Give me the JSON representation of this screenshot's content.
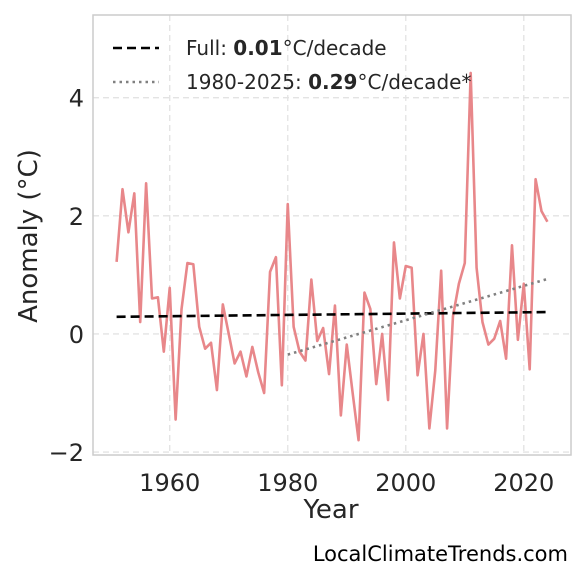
{
  "chart_data": {
    "type": "line",
    "title": "",
    "xlabel": "Year",
    "ylabel": "Anomaly (°C)",
    "xlim": [
      1947,
      2028
    ],
    "ylim": [
      -2.05,
      5.4
    ],
    "xticks": [
      1960,
      1980,
      2000,
      2020
    ],
    "xtick_labels": [
      "1960",
      "1980",
      "2000",
      "2020"
    ],
    "yticks": [
      -2,
      0,
      2,
      4
    ],
    "ytick_labels": [
      "−2",
      "0",
      "2",
      "4"
    ],
    "grid": true,
    "legend_position": "top-left",
    "series": [
      {
        "kind": "data",
        "color": "#e8878a",
        "x": [
          1951,
          1952,
          1953,
          1954,
          1955,
          1956,
          1957,
          1958,
          1959,
          1960,
          1961,
          1962,
          1963,
          1964,
          1965,
          1966,
          1967,
          1968,
          1969,
          1970,
          1971,
          1972,
          1973,
          1974,
          1975,
          1976,
          1977,
          1978,
          1979,
          1980,
          1981,
          1982,
          1983,
          1984,
          1985,
          1986,
          1987,
          1988,
          1989,
          1990,
          1991,
          1992,
          1993,
          1994,
          1995,
          1996,
          1997,
          1998,
          1999,
          2000,
          2001,
          2002,
          2003,
          2004,
          2005,
          2006,
          2007,
          2008,
          2009,
          2010,
          2011,
          2012,
          2013,
          2014,
          2015,
          2016,
          2017,
          2018,
          2019,
          2020,
          2021,
          2022,
          2023,
          2024
        ],
        "y": [
          1.22,
          2.45,
          1.72,
          2.38,
          0.2,
          2.55,
          0.6,
          0.62,
          -0.3,
          0.78,
          -1.45,
          0.42,
          1.2,
          1.18,
          0.12,
          -0.25,
          -0.15,
          -0.95,
          0.5,
          0.0,
          -0.5,
          -0.3,
          -0.72,
          -0.22,
          -0.65,
          -1.0,
          1.05,
          1.3,
          -0.87,
          2.2,
          0.12,
          -0.3,
          -0.45,
          0.92,
          -0.12,
          0.1,
          -0.68,
          0.48,
          -1.38,
          -0.18,
          -1.0,
          -1.8,
          0.7,
          0.42,
          -0.85,
          0.0,
          -1.12,
          1.55,
          0.6,
          1.15,
          1.12,
          -0.7,
          0.0,
          -1.6,
          -0.62,
          1.07,
          -1.6,
          0.3,
          0.85,
          1.2,
          4.42,
          1.12,
          0.2,
          -0.18,
          -0.08,
          0.22,
          -0.42,
          1.5,
          -0.1,
          0.85,
          -0.6,
          2.62,
          2.08,
          1.9
        ]
      },
      {
        "kind": "trend-full",
        "name": "Full:",
        "rate": "0.01",
        "unit": "°C/decade",
        "color": "#000000",
        "x": [
          1951,
          2024
        ],
        "y": [
          0.29,
          0.37
        ]
      },
      {
        "kind": "trend-recent",
        "name": "1980-2025:",
        "rate": "0.29",
        "unit": "°C/decade*",
        "color": "#808080",
        "x": [
          1980,
          2024
        ],
        "y": [
          -0.35,
          0.93
        ]
      }
    ]
  },
  "credit": "LocalClimateTrends.com"
}
